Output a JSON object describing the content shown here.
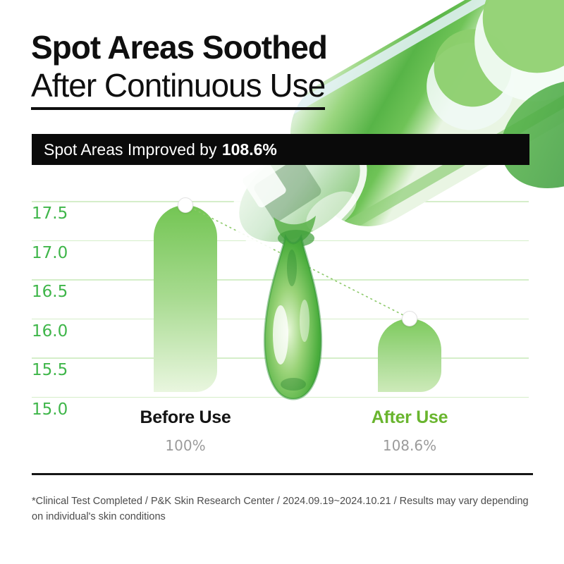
{
  "title": {
    "line1": "Spot Areas Soothed",
    "line2": "After Continuous Use"
  },
  "banner": {
    "text_prefix": "Spot Areas Improved by",
    "highlight": "108.6%"
  },
  "chart_data": {
    "type": "bar",
    "title": "Spot Areas Soothed After Continuous Use",
    "categories": [
      "Before Use",
      "After Use"
    ],
    "values": [
      17.45,
      16.0
    ],
    "value_labels": [
      "100%",
      "108.6%"
    ],
    "yticks": [
      "17.5",
      "17.0",
      "16.5",
      "16.0",
      "15.5",
      "15.0"
    ],
    "ylim": [
      15.0,
      17.5
    ],
    "grid": true,
    "legend": false,
    "marker": "white-circle-on-bar-top",
    "connector": "green-dashed-line-between-markers"
  },
  "footer": {
    "line1": "*Clinical Test Completed / P&K Skin Research Center / 2024.09.19~2024.10.21 / Results may vary depending",
    "line2": "on individual's skin conditions"
  },
  "colors": {
    "axis_green": "#3fb64a",
    "after_use_green": "#69b52e",
    "bar_gradient_top": "#76c756",
    "bar_gradient_bottom": "#eef8e7",
    "grid_line": "#d5eec9",
    "percent_gray": "#9b9b9b",
    "banner_bg": "#0a0a0a",
    "banner_text": "#ffffff",
    "text_black": "#141414",
    "footer_text": "#4c4c4c",
    "dashed_line": "#8cc96a"
  },
  "decor": {
    "dropper": "green serum glass dropper with hanging droplet, top right"
  }
}
